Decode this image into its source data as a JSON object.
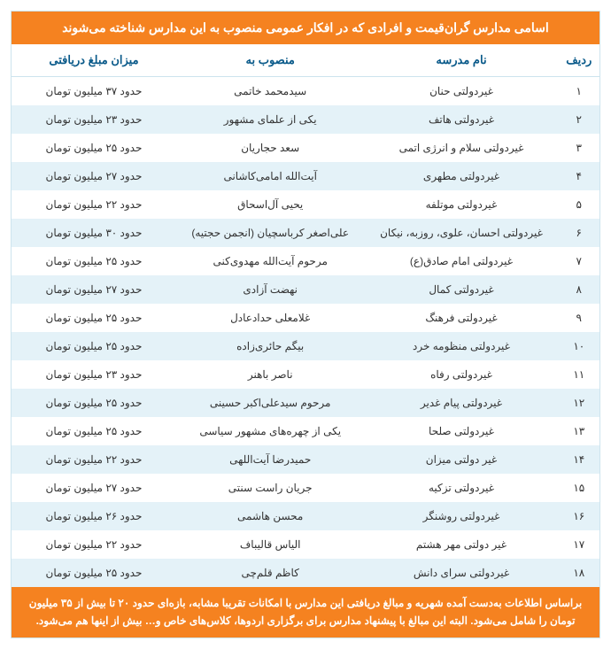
{
  "title": "اسامی مدارس گران‌قیمت و افرادی که در افکار عمومی منصوب به این مدارس شناخته می‌شوند",
  "columns": {
    "idx": "ردیف",
    "school": "نام مدرسه",
    "person": "منصوب به",
    "fee": "میزان مبلغ دریافتی"
  },
  "rows": [
    {
      "idx": "۱",
      "school": "غیردولتی حنان",
      "person": "سیدمحمد خاتمی",
      "fee": "حدود ۳۷ میلیون تومان"
    },
    {
      "idx": "۲",
      "school": "غیردولتی هاتف",
      "person": "یکی از علمای مشهور",
      "fee": "حدود ۲۳ میلیون تومان"
    },
    {
      "idx": "۳",
      "school": "غیردولتی سلام و انرژی اتمی",
      "person": "سعد حجاریان",
      "fee": "حدود ۲۵ میلیون تومان"
    },
    {
      "idx": "۴",
      "school": "غیردولتی مطهری",
      "person": "آیت‌الله امامی‌کاشانی",
      "fee": "حدود ۲۷ میلیون تومان"
    },
    {
      "idx": "۵",
      "school": "غیردولتی موتلفه",
      "person": "یحیی آل‌اسحاق",
      "fee": "حدود ۲۲ میلیون تومان"
    },
    {
      "idx": "۶",
      "school": "غیردولتی احسان، علوی، روزبه، نیکان",
      "person": "علی‌اصغر کرباسچیان (انجمن حجتیه)",
      "fee": "حدود ۳۰ میلیون تومان"
    },
    {
      "idx": "۷",
      "school": "غیردولتی امام صادق(ع)",
      "person": "مرحوم آیت‌الله مهدوی‌کنی",
      "fee": "حدود ۲۵ میلیون تومان"
    },
    {
      "idx": "۸",
      "school": "غیردولتی کمال",
      "person": "نهضت آزادی",
      "fee": "حدود ۲۷ میلیون تومان"
    },
    {
      "idx": "۹",
      "school": "غیردولتی فرهنگ",
      "person": "غلامعلی حدادعادل",
      "fee": "حدود ۲۵ میلیون تومان"
    },
    {
      "idx": "۱۰",
      "school": "غیردولتی منظومه خرد",
      "person": "بیگم حائری‌زاده",
      "fee": "حدود ۲۵ میلیون تومان"
    },
    {
      "idx": "۱۱",
      "school": "غیردولتی رفاه",
      "person": "ناصر باهنر",
      "fee": "حدود ۲۳ میلیون تومان"
    },
    {
      "idx": "۱۲",
      "school": "غیردولتی پیام غدیر",
      "person": "مرحوم سیدعلی‌اکبر حسینی",
      "fee": "حدود ۲۵ میلیون تومان"
    },
    {
      "idx": "۱۳",
      "school": "غیردولتی صلحا",
      "person": "یکی از چهره‌های مشهور سیاسی",
      "fee": "حدود ۲۵ میلیون تومان"
    },
    {
      "idx": "۱۴",
      "school": "غیر دولتی میزان",
      "person": "حمیدرضا آیت‌اللهی",
      "fee": "حدود ۲۲ میلیون تومان"
    },
    {
      "idx": "۱۵",
      "school": "غیردولتی تزکیه",
      "person": "جریان راست سنتی",
      "fee": "حدود ۲۷ میلیون تومان"
    },
    {
      "idx": "۱۶",
      "school": "غیردولتی روشنگر",
      "person": "محسن هاشمی",
      "fee": "حدود ۲۶ میلیون تومان"
    },
    {
      "idx": "۱۷",
      "school": "غیر دولتی مهر هشتم",
      "person": "الیاس قالیباف",
      "fee": "حدود ۲۲ میلیون تومان"
    },
    {
      "idx": "۱۸",
      "school": "غیردولتی سرای دانش",
      "person": "کاظم قلم‌چی",
      "fee": "حدود ۲۵ میلیون تومان"
    }
  ],
  "footer": "براساس اطلاعات به‌دست آمده شهریه و مبالغ دریافتی این مدارس با امکانات تقریبا مشابه، بازه‌ای حدود ۲۰ تا بیش از ۳۵ میلیون تومان را شامل می‌شود. البته این مبالغ با پیشنهاد مدارس برای برگزاری اردوها، کلاس‌های خاص و… بیش از اینها هم می‌شود.",
  "style": {
    "header_bg": "#f58220",
    "header_text": "#ffffff",
    "th_text": "#0a5a8a",
    "row_even_bg": "#e4f2f8",
    "row_odd_bg": "#ffffff",
    "border_color": "#cde4ee",
    "body_font_size": 12,
    "title_font_size": 14
  }
}
